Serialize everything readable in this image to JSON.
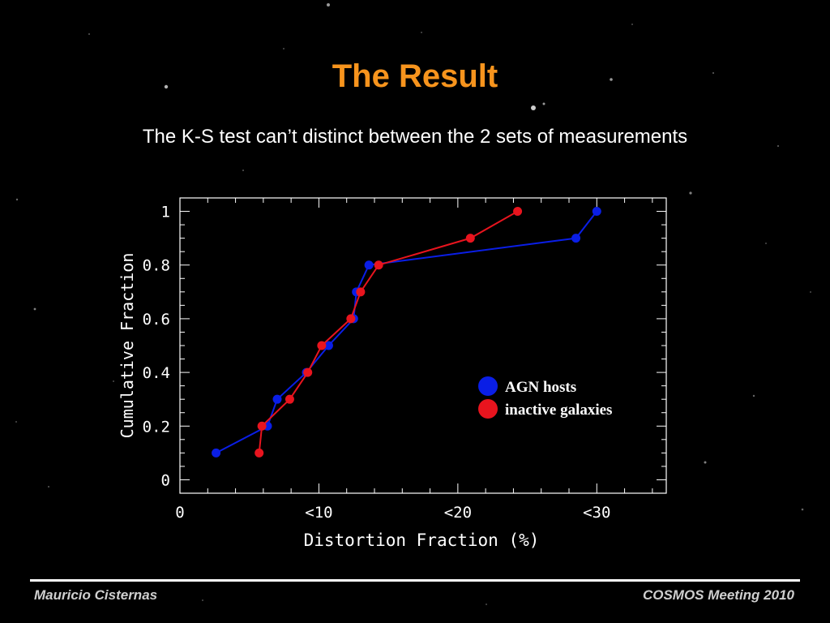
{
  "slide": {
    "title": "The Result",
    "subtitle": "The K-S test can’t distinct between the 2 sets of measurements",
    "footer_left": "Mauricio Cisternas",
    "footer_right": "COSMOS Meeting 2010"
  },
  "colors": {
    "title": "#f7941d",
    "background": "#000000",
    "agn": "#0a1ee6",
    "inactive": "#e8141e"
  },
  "chart_data": {
    "type": "line",
    "xlabel": "Distortion Fraction (%)",
    "ylabel": "Cumulative Fraction",
    "xlim": [
      0,
      35
    ],
    "ylim": [
      -0.05,
      1.05
    ],
    "x_ticks": [
      {
        "value": 0,
        "label": "0"
      },
      {
        "value": 10,
        "label": "<10"
      },
      {
        "value": 20,
        "label": "<20"
      },
      {
        "value": 30,
        "label": "<30"
      }
    ],
    "y_ticks": [
      {
        "value": 0,
        "label": "0"
      },
      {
        "value": 0.2,
        "label": "0.2"
      },
      {
        "value": 0.4,
        "label": "0.4"
      },
      {
        "value": 0.6,
        "label": "0.6"
      },
      {
        "value": 0.8,
        "label": "0.8"
      },
      {
        "value": 1,
        "label": "1"
      }
    ],
    "legend_position": "lower-right",
    "series": [
      {
        "name": "AGN hosts",
        "color": "#0a1ee6",
        "points": [
          [
            2.6,
            0.1
          ],
          [
            6.3,
            0.2
          ],
          [
            7.0,
            0.3
          ],
          [
            9.1,
            0.4
          ],
          [
            10.7,
            0.5
          ],
          [
            12.5,
            0.6
          ],
          [
            12.7,
            0.7
          ],
          [
            13.6,
            0.8
          ],
          [
            28.5,
            0.9
          ],
          [
            30.0,
            1.0
          ]
        ]
      },
      {
        "name": "inactive galaxies",
        "color": "#e8141e",
        "points": [
          [
            5.7,
            0.1
          ],
          [
            5.9,
            0.2
          ],
          [
            7.9,
            0.3
          ],
          [
            9.2,
            0.4
          ],
          [
            10.2,
            0.5
          ],
          [
            12.3,
            0.6
          ],
          [
            13.0,
            0.7
          ],
          [
            14.3,
            0.8
          ],
          [
            20.9,
            0.9
          ],
          [
            24.3,
            1.0
          ]
        ]
      }
    ]
  }
}
